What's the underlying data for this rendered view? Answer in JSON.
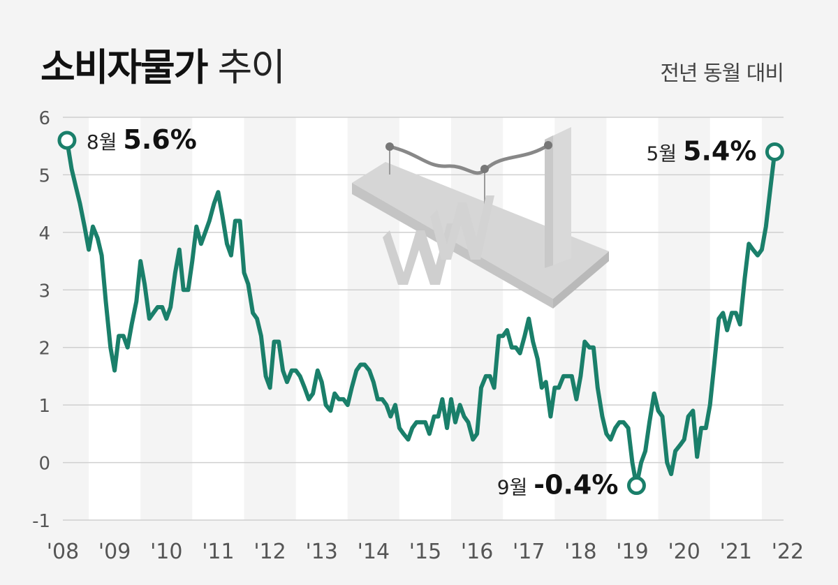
{
  "header": {
    "title_main": "소비자물가",
    "title_rest": " 추이",
    "subtitle": "전년 동월 대비"
  },
  "colors": {
    "line": "#1a7f6a",
    "band": "#ffffff",
    "grid": "#cfcfcf",
    "background": "#f4f4f4"
  },
  "illustration": {
    "icon": "won-currency-graph-icon"
  },
  "chart_data": {
    "type": "line",
    "title": "소비자물가 추이",
    "subtitle": "전년 동월 대비",
    "ylim": [
      -1,
      6
    ],
    "yticks": [
      "-1",
      "0",
      "1",
      "2",
      "3",
      "4",
      "5",
      "6"
    ],
    "xlim": [
      2008.5,
      2022.42
    ],
    "xticks": [
      {
        "label": "'08",
        "year": 2008
      },
      {
        "label": "'09",
        "year": 2009
      },
      {
        "label": "'10",
        "year": 2010
      },
      {
        "label": "'11",
        "year": 2011
      },
      {
        "label": "'12",
        "year": 2012
      },
      {
        "label": "'13",
        "year": 2013
      },
      {
        "label": "'14",
        "year": 2014
      },
      {
        "label": "'15",
        "year": 2015
      },
      {
        "label": "'16",
        "year": 2016
      },
      {
        "label": "'17",
        "year": 2017
      },
      {
        "label": "'18",
        "year": 2018
      },
      {
        "label": "'19",
        "year": 2019
      },
      {
        "label": "'20",
        "year": 2020
      },
      {
        "label": "'21",
        "year": 2021
      },
      {
        "label": "'22",
        "year": 2022
      }
    ],
    "grid": true,
    "series": [
      {
        "values": [
          [
            2008.58,
            5.6
          ],
          [
            2008.67,
            5.1
          ],
          [
            2008.75,
            4.8
          ],
          [
            2008.83,
            4.5
          ],
          [
            2008.92,
            4.1
          ],
          [
            2009.0,
            3.7
          ],
          [
            2009.08,
            4.1
          ],
          [
            2009.17,
            3.9
          ],
          [
            2009.25,
            3.6
          ],
          [
            2009.33,
            2.8
          ],
          [
            2009.42,
            2.0
          ],
          [
            2009.5,
            1.6
          ],
          [
            2009.58,
            2.2
          ],
          [
            2009.67,
            2.2
          ],
          [
            2009.75,
            2.0
          ],
          [
            2009.83,
            2.4
          ],
          [
            2009.92,
            2.8
          ],
          [
            2010.0,
            3.5
          ],
          [
            2010.08,
            3.1
          ],
          [
            2010.17,
            2.5
          ],
          [
            2010.25,
            2.6
          ],
          [
            2010.33,
            2.7
          ],
          [
            2010.42,
            2.7
          ],
          [
            2010.5,
            2.5
          ],
          [
            2010.58,
            2.7
          ],
          [
            2010.67,
            3.3
          ],
          [
            2010.75,
            3.7
          ],
          [
            2010.83,
            3.0
          ],
          [
            2010.92,
            3.0
          ],
          [
            2011.0,
            3.5
          ],
          [
            2011.08,
            4.1
          ],
          [
            2011.17,
            3.8
          ],
          [
            2011.25,
            4.0
          ],
          [
            2011.33,
            4.2
          ],
          [
            2011.42,
            4.5
          ],
          [
            2011.5,
            4.7
          ],
          [
            2011.58,
            4.3
          ],
          [
            2011.67,
            3.8
          ],
          [
            2011.75,
            3.6
          ],
          [
            2011.83,
            4.2
          ],
          [
            2011.92,
            4.2
          ],
          [
            2012.0,
            3.3
          ],
          [
            2012.08,
            3.1
          ],
          [
            2012.17,
            2.6
          ],
          [
            2012.25,
            2.5
          ],
          [
            2012.33,
            2.2
          ],
          [
            2012.42,
            1.5
          ],
          [
            2012.5,
            1.3
          ],
          [
            2012.58,
            2.1
          ],
          [
            2012.67,
            2.1
          ],
          [
            2012.75,
            1.6
          ],
          [
            2012.83,
            1.4
          ],
          [
            2012.92,
            1.6
          ],
          [
            2013.0,
            1.6
          ],
          [
            2013.08,
            1.5
          ],
          [
            2013.17,
            1.3
          ],
          [
            2013.25,
            1.1
          ],
          [
            2013.33,
            1.2
          ],
          [
            2013.42,
            1.6
          ],
          [
            2013.5,
            1.4
          ],
          [
            2013.58,
            1.0
          ],
          [
            2013.67,
            0.9
          ],
          [
            2013.75,
            1.2
          ],
          [
            2013.83,
            1.1
          ],
          [
            2013.92,
            1.1
          ],
          [
            2014.0,
            1.0
          ],
          [
            2014.08,
            1.3
          ],
          [
            2014.17,
            1.6
          ],
          [
            2014.25,
            1.7
          ],
          [
            2014.33,
            1.7
          ],
          [
            2014.42,
            1.6
          ],
          [
            2014.5,
            1.4
          ],
          [
            2014.58,
            1.1
          ],
          [
            2014.67,
            1.1
          ],
          [
            2014.75,
            1.0
          ],
          [
            2014.83,
            0.8
          ],
          [
            2014.92,
            1.0
          ],
          [
            2015.0,
            0.6
          ],
          [
            2015.08,
            0.5
          ],
          [
            2015.17,
            0.4
          ],
          [
            2015.25,
            0.6
          ],
          [
            2015.33,
            0.7
          ],
          [
            2015.42,
            0.7
          ],
          [
            2015.5,
            0.7
          ],
          [
            2015.58,
            0.5
          ],
          [
            2015.67,
            0.8
          ],
          [
            2015.75,
            0.8
          ],
          [
            2015.83,
            1.1
          ],
          [
            2015.92,
            0.6
          ],
          [
            2016.0,
            1.1
          ],
          [
            2016.08,
            0.7
          ],
          [
            2016.17,
            1.0
          ],
          [
            2016.25,
            0.8
          ],
          [
            2016.33,
            0.7
          ],
          [
            2016.42,
            0.4
          ],
          [
            2016.5,
            0.5
          ],
          [
            2016.58,
            1.3
          ],
          [
            2016.67,
            1.5
          ],
          [
            2016.75,
            1.5
          ],
          [
            2016.83,
            1.3
          ],
          [
            2016.92,
            2.2
          ],
          [
            2017.0,
            2.2
          ],
          [
            2017.08,
            2.3
          ],
          [
            2017.17,
            2.0
          ],
          [
            2017.25,
            2.0
          ],
          [
            2017.33,
            1.9
          ],
          [
            2017.42,
            2.2
          ],
          [
            2017.5,
            2.5
          ],
          [
            2017.58,
            2.1
          ],
          [
            2017.67,
            1.8
          ],
          [
            2017.75,
            1.3
          ],
          [
            2017.83,
            1.4
          ],
          [
            2017.92,
            0.8
          ],
          [
            2018.0,
            1.3
          ],
          [
            2018.08,
            1.3
          ],
          [
            2018.17,
            1.5
          ],
          [
            2018.25,
            1.5
          ],
          [
            2018.33,
            1.5
          ],
          [
            2018.42,
            1.1
          ],
          [
            2018.5,
            1.5
          ],
          [
            2018.58,
            2.1
          ],
          [
            2018.67,
            2.0
          ],
          [
            2018.75,
            2.0
          ],
          [
            2018.83,
            1.3
          ],
          [
            2018.92,
            0.8
          ],
          [
            2019.0,
            0.5
          ],
          [
            2019.08,
            0.4
          ],
          [
            2019.17,
            0.6
          ],
          [
            2019.25,
            0.7
          ],
          [
            2019.33,
            0.7
          ],
          [
            2019.42,
            0.6
          ],
          [
            2019.5,
            0.0
          ],
          [
            2019.58,
            -0.4
          ],
          [
            2019.67,
            0.0
          ],
          [
            2019.75,
            0.2
          ],
          [
            2019.83,
            0.7
          ],
          [
            2019.92,
            1.2
          ],
          [
            2020.0,
            0.9
          ],
          [
            2020.08,
            0.8
          ],
          [
            2020.17,
            0.0
          ],
          [
            2020.25,
            -0.2
          ],
          [
            2020.33,
            0.2
          ],
          [
            2020.42,
            0.3
          ],
          [
            2020.5,
            0.4
          ],
          [
            2020.58,
            0.8
          ],
          [
            2020.67,
            0.9
          ],
          [
            2020.75,
            0.1
          ],
          [
            2020.83,
            0.6
          ],
          [
            2020.92,
            0.6
          ],
          [
            2021.0,
            1.0
          ],
          [
            2021.08,
            1.7
          ],
          [
            2021.17,
            2.5
          ],
          [
            2021.25,
            2.6
          ],
          [
            2021.33,
            2.3
          ],
          [
            2021.42,
            2.6
          ],
          [
            2021.5,
            2.6
          ],
          [
            2021.58,
            2.4
          ],
          [
            2021.67,
            3.2
          ],
          [
            2021.75,
            3.8
          ],
          [
            2021.83,
            3.7
          ],
          [
            2021.92,
            3.6
          ],
          [
            2022.0,
            3.7
          ],
          [
            2022.08,
            4.1
          ],
          [
            2022.17,
            4.8
          ],
          [
            2022.25,
            5.4
          ]
        ]
      }
    ],
    "annotations": [
      {
        "month": "8월",
        "value": "5.6%",
        "x": 2008.58,
        "y": 5.6,
        "side": "right"
      },
      {
        "month": "5월",
        "value": "5.4%",
        "x": 2022.25,
        "y": 5.4,
        "side": "left"
      },
      {
        "month": "9월",
        "value": "-0.4%",
        "x": 2019.58,
        "y": -0.4,
        "side": "left"
      }
    ]
  }
}
